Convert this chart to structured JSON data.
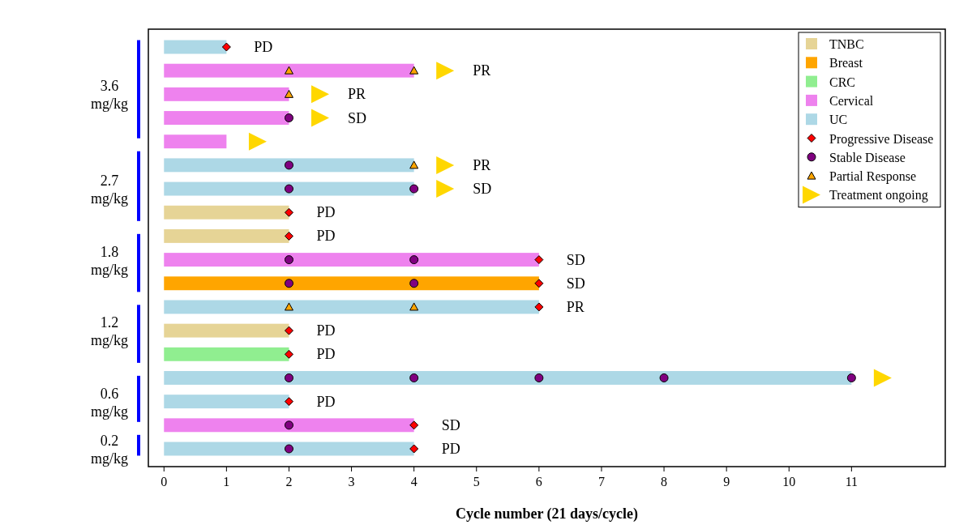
{
  "chart_data": {
    "type": "bar",
    "orientation": "horizontal",
    "xlabel": "Cycle number (21 days/cycle)",
    "categories": [
      null,
      null,
      "3.6 mg/kg",
      null,
      null,
      null,
      "2.7 mg/kg",
      null,
      null,
      "1.8 mg/kg",
      null,
      null,
      "1.2 mg/kg",
      null,
      null,
      "0.6 mg/kg",
      null,
      "0.2 mg/kg"
    ],
    "xlim": [
      -0.25,
      12.5
    ],
    "xticks": [
      0,
      1,
      2,
      3,
      4,
      5,
      6,
      7,
      8,
      9,
      10,
      11
    ],
    "legend": "top right",
    "series": [
      {
        "name": "TNBC",
        "color": "#e6d496",
        "values": [
          null,
          null,
          null,
          null,
          null,
          null,
          null,
          2,
          2,
          null,
          null,
          null,
          2,
          null,
          null,
          null,
          null,
          null
        ],
        "value_labels": [
          null,
          null,
          null,
          null,
          null,
          null,
          null,
          "PD",
          "PD",
          null,
          null,
          null,
          "PD",
          null,
          null,
          null,
          null,
          null
        ]
      },
      {
        "name": "Breast",
        "color": "#ffa500",
        "values": [
          null,
          null,
          null,
          null,
          null,
          null,
          null,
          null,
          null,
          null,
          6,
          null,
          null,
          null,
          null,
          null,
          null,
          null
        ],
        "value_labels": [
          null,
          null,
          null,
          null,
          null,
          null,
          null,
          null,
          null,
          null,
          "SD",
          null,
          null,
          null,
          null,
          null,
          null,
          null
        ]
      },
      {
        "name": "CRC",
        "color": "#90ee90",
        "values": [
          null,
          null,
          null,
          null,
          null,
          null,
          null,
          null,
          null,
          null,
          null,
          null,
          null,
          2,
          null,
          null,
          null,
          null
        ],
        "value_labels": [
          null,
          null,
          null,
          null,
          null,
          null,
          null,
          null,
          null,
          null,
          null,
          null,
          null,
          "PD",
          null,
          null,
          null,
          null
        ]
      },
      {
        "name": "Cervical",
        "color": "#ee82ee",
        "values": [
          null,
          4,
          2,
          2,
          1,
          null,
          null,
          null,
          null,
          6,
          null,
          null,
          null,
          null,
          null,
          null,
          4,
          null
        ],
        "value_labels": [
          null,
          null,
          null,
          null,
          null,
          null,
          null,
          null,
          null,
          "SD",
          null,
          null,
          null,
          null,
          null,
          null,
          "SD",
          null
        ]
      },
      {
        "name": "UC",
        "color": "#add8e6",
        "values": [
          1,
          null,
          null,
          null,
          null,
          4,
          4,
          null,
          null,
          null,
          null,
          6,
          null,
          null,
          11,
          2,
          null,
          4
        ],
        "value_labels": [
          "PD",
          null,
          null,
          null,
          null,
          null,
          null,
          null,
          null,
          null,
          null,
          "PR",
          null,
          null,
          null,
          "PD",
          null,
          "PD"
        ]
      },
      {
        "type": "scatter",
        "name": "Progressive Disease",
        "marker": "diamond",
        "color": "#ff0000",
        "values": [
          1,
          null,
          null,
          null,
          null,
          null,
          null,
          2,
          2,
          6,
          6,
          6,
          2,
          2,
          null,
          2,
          4,
          4
        ]
      },
      {
        "type": "scatter",
        "name": "Stable Disease",
        "marker": "circle",
        "color": "#800080",
        "values": [
          null,
          null,
          null,
          2,
          null,
          2,
          2,
          null,
          null,
          2,
          2,
          null,
          null,
          null,
          2,
          null,
          2,
          2
        ]
      },
      {
        "type": "scatter",
        "marker": "circle",
        "color": "#800080",
        "values": [
          null,
          null,
          null,
          null,
          null,
          null,
          4,
          null,
          null,
          4,
          4,
          null,
          null,
          null,
          4,
          null,
          null,
          null
        ]
      },
      {
        "type": "scatter",
        "marker": "circle",
        "color": "#800080",
        "values": [
          null,
          null,
          null,
          null,
          null,
          null,
          null,
          null,
          null,
          null,
          null,
          null,
          null,
          null,
          6,
          null,
          null,
          null
        ]
      },
      {
        "type": "scatter",
        "marker": "circle",
        "color": "#800080",
        "values": [
          null,
          null,
          null,
          null,
          null,
          null,
          null,
          null,
          null,
          null,
          null,
          null,
          null,
          null,
          8,
          null,
          null,
          null
        ]
      },
      {
        "type": "scatter",
        "marker": "circle",
        "color": "#800080",
        "values": [
          null,
          null,
          null,
          null,
          null,
          null,
          null,
          null,
          null,
          null,
          null,
          null,
          null,
          null,
          11,
          null,
          null,
          null
        ]
      },
      {
        "type": "scatter",
        "name": "Partial Response",
        "marker": "triangle",
        "color": "#ffa500",
        "values": [
          null,
          2,
          2,
          null,
          null,
          null,
          null,
          null,
          null,
          null,
          null,
          2,
          null,
          null,
          null,
          null,
          null,
          null
        ]
      },
      {
        "type": "scatter",
        "marker": "triangle",
        "color": "#ffa500",
        "values": [
          null,
          4,
          null,
          null,
          null,
          4,
          null,
          null,
          null,
          null,
          null,
          4,
          null,
          null,
          null,
          null,
          null,
          null
        ]
      },
      {
        "type": "scatter",
        "name": "Treatment ongoing",
        "marker": "triangle-right",
        "color": "#ffd700",
        "values": [
          null,
          4.5,
          2.5,
          2.5,
          1.5,
          4.5,
          4.5,
          null,
          null,
          null,
          null,
          null,
          null,
          null,
          11.5,
          null,
          null,
          null
        ],
        "value_labels": [
          null,
          "PR",
          "PR",
          "SD",
          null,
          "PR",
          "SD",
          null,
          null,
          null,
          null,
          null,
          null,
          null,
          null,
          null,
          null,
          null
        ]
      }
    ]
  }
}
